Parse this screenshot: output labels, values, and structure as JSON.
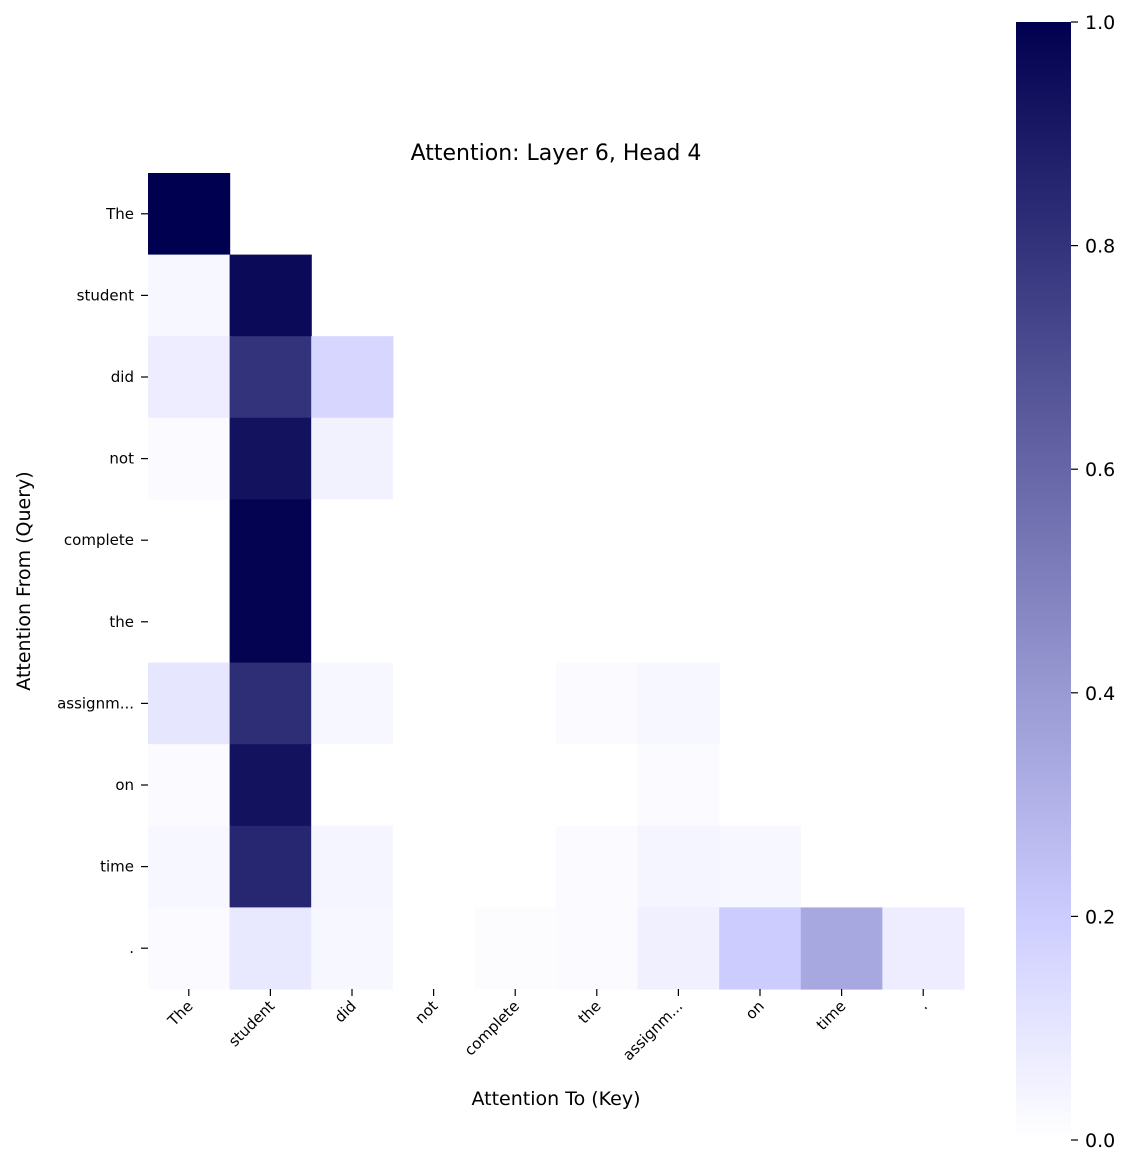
{
  "chart_data": {
    "type": "heatmap",
    "title": "Attention: Layer 6, Head 4",
    "xlabel": "Attention To (Key)",
    "ylabel": "Attention From (Query)",
    "x_tokens": [
      "The",
      "student",
      "did",
      "not",
      "complete",
      "the",
      "assignm...",
      "on",
      "time",
      "."
    ],
    "y_tokens": [
      "The",
      "student",
      "did",
      "not",
      "complete",
      "the",
      "assignm...",
      "on",
      "time",
      "."
    ],
    "values": [
      [
        1.0,
        0.0,
        0.0,
        0.0,
        0.0,
        0.0,
        0.0,
        0.0,
        0.0,
        0.0
      ],
      [
        0.03,
        0.96,
        0.0,
        0.0,
        0.0,
        0.0,
        0.0,
        0.0,
        0.0,
        0.0
      ],
      [
        0.07,
        0.8,
        0.16,
        0.0,
        0.0,
        0.0,
        0.0,
        0.0,
        0.0,
        0.0
      ],
      [
        0.02,
        0.93,
        0.05,
        0.0,
        0.0,
        0.0,
        0.0,
        0.0,
        0.0,
        0.0
      ],
      [
        0.0,
        0.99,
        0.0,
        0.0,
        0.0,
        0.0,
        0.0,
        0.0,
        0.0,
        0.0
      ],
      [
        0.0,
        0.99,
        0.0,
        0.0,
        0.0,
        0.0,
        0.0,
        0.0,
        0.0,
        0.0
      ],
      [
        0.1,
        0.82,
        0.03,
        0.0,
        0.0,
        0.02,
        0.03,
        0.0,
        0.0,
        0.0
      ],
      [
        0.02,
        0.93,
        0.0,
        0.0,
        0.0,
        0.0,
        0.02,
        0.0,
        0.0,
        0.0
      ],
      [
        0.03,
        0.85,
        0.04,
        0.0,
        0.0,
        0.02,
        0.04,
        0.03,
        0.0,
        0.0
      ],
      [
        0.02,
        0.09,
        0.03,
        0.0,
        0.01,
        0.02,
        0.06,
        0.2,
        0.34,
        0.07
      ]
    ],
    "colorbar": {
      "min": 0.0,
      "max": 1.0,
      "ticks": [
        0.0,
        0.2,
        0.4,
        0.6,
        0.8,
        1.0
      ],
      "tick_labels": [
        "0.0",
        "0.2",
        "0.4",
        "0.6",
        "0.8",
        "1.0"
      ],
      "colors": [
        "#ffffff",
        "#ccccff",
        "#000050"
      ]
    },
    "grid": false
  }
}
